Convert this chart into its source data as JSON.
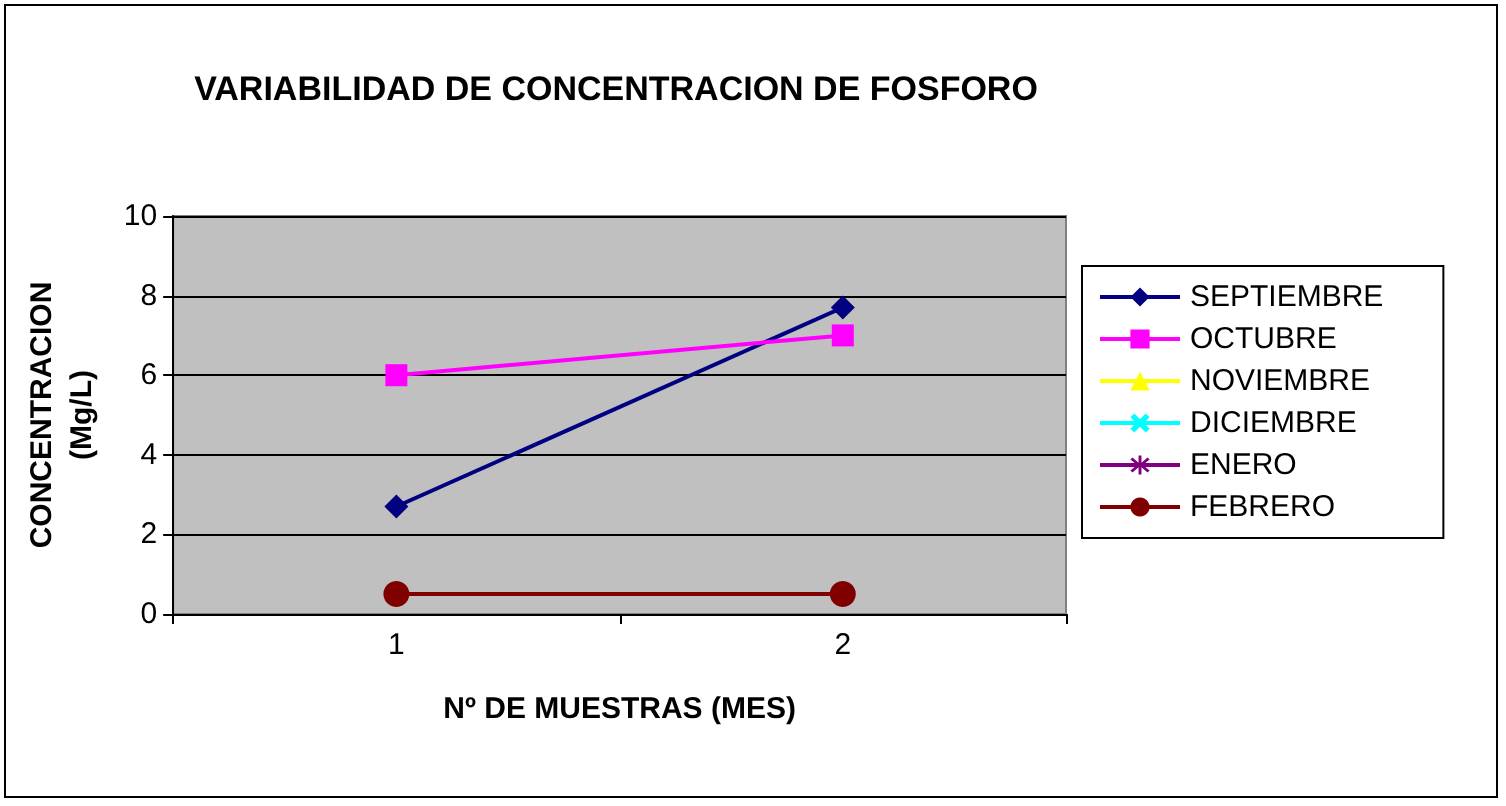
{
  "chart_data": {
    "type": "line",
    "title": "VARIABILIDAD DE CONCENTRACION DE FOSFORO",
    "xlabel": "Nº DE MUESTRAS (MES)",
    "ylabel": "CONCENTRACION\n(Mg/L)",
    "categories": [
      "1",
      "2"
    ],
    "series": [
      {
        "name": "SEPTIEMBRE",
        "color": "#000080",
        "marker": "diamond",
        "values": [
          2.7,
          7.7
        ]
      },
      {
        "name": "OCTUBRE",
        "color": "#ff00ff",
        "marker": "square",
        "values": [
          6,
          7
        ]
      },
      {
        "name": "NOVIEMBRE",
        "color": "#ffff00",
        "marker": "triangle",
        "values": [
          null,
          null
        ]
      },
      {
        "name": "DICIEMBRE",
        "color": "#00ffff",
        "marker": "cross",
        "values": [
          null,
          null
        ]
      },
      {
        "name": "ENERO",
        "color": "#800080",
        "marker": "star",
        "values": [
          null,
          null
        ]
      },
      {
        "name": "FEBRERO",
        "color": "#800000",
        "marker": "circle",
        "values": [
          0.5,
          0.5
        ]
      }
    ],
    "ylim": [
      0,
      10
    ],
    "yticks": [
      0,
      2,
      4,
      6,
      8,
      10
    ],
    "grid": "y",
    "legend": "right"
  }
}
